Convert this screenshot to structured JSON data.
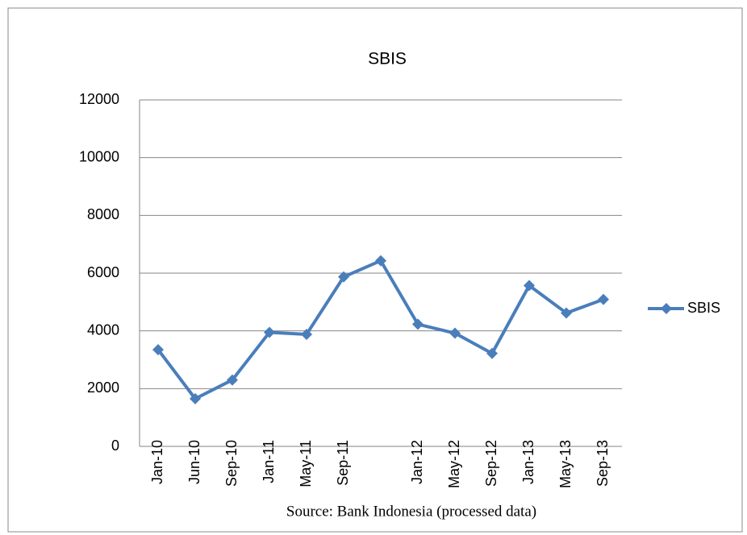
{
  "chart_data": {
    "type": "line",
    "title": "SBIS",
    "categories": [
      "Jan-10",
      "Jun-10",
      "Sep-10",
      "Jan-11",
      "May-11",
      "Sep-11",
      null,
      "Jan-12",
      "May-12",
      "Sep-12",
      "Jan-13",
      "May-13",
      "Sep-13"
    ],
    "series": [
      {
        "name": "SBIS",
        "color": "#4a7ebb",
        "values": [
          3350,
          1650,
          2300,
          3950,
          3880,
          5870,
          6430,
          4230,
          3920,
          3220,
          5570,
          4620,
          5090
        ]
      }
    ],
    "ylim": [
      0,
      12000
    ],
    "yticks": [
      0,
      2000,
      4000,
      6000,
      8000,
      10000,
      12000
    ],
    "grid": true,
    "legend": "right",
    "source": "Source: Bank Indonesia (processed data)"
  }
}
